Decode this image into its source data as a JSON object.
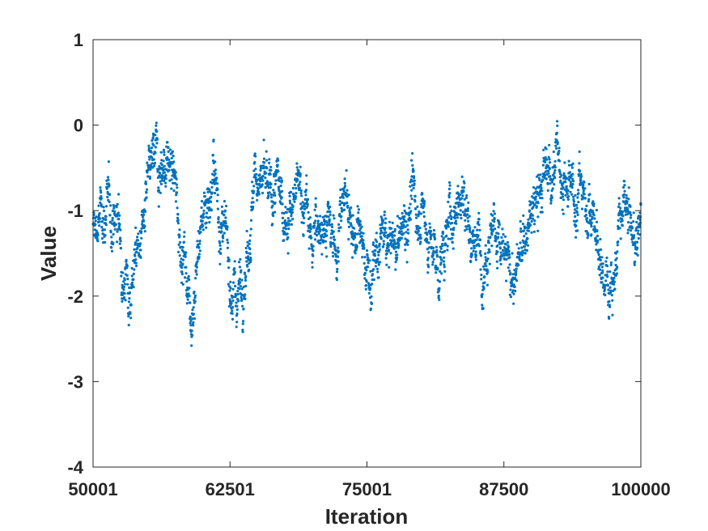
{
  "chart_data": {
    "type": "scatter",
    "xlabel": "Iteration",
    "ylabel": "Value",
    "xlim": [
      50001,
      100000
    ],
    "ylim": [
      -4,
      1
    ],
    "xticks": [
      50001,
      62501,
      75001,
      87500,
      100000
    ],
    "xtick_labels": [
      "50001",
      "62501",
      "75001",
      "87500",
      "100000"
    ],
    "yticks": [
      1,
      0,
      -1,
      -2,
      -3,
      -4
    ],
    "ytick_labels": [
      "1",
      "0",
      "-1",
      "-2",
      "-3",
      "-4"
    ],
    "grid": false,
    "marker_color": "#0072BD",
    "series": [
      {
        "values_anchor_x": [
          50001,
          51000,
          52200,
          53300,
          54500,
          55500,
          56300,
          57200,
          58000,
          59000,
          60000,
          61000,
          62000,
          63000,
          63700,
          65000,
          66000,
          67000,
          68000,
          69000,
          70000,
          71000,
          72000,
          73000,
          74500,
          75500,
          76500,
          77500,
          79000,
          80000,
          81500,
          82500,
          83500,
          84500,
          85500,
          86500,
          87500,
          88500,
          89500,
          90500,
          91500,
          92500,
          93500,
          94500,
          95500,
          96500,
          97500,
          98500,
          99500,
          100000
        ],
        "values_anchor_y": [
          -1.3,
          -1.0,
          -1.1,
          -1.9,
          -1.2,
          -0.5,
          -0.4,
          -0.5,
          -1.3,
          -2.1,
          -1.0,
          -0.6,
          -1.4,
          -2.0,
          -1.7,
          -0.5,
          -0.9,
          -0.8,
          -1.1,
          -0.7,
          -1.4,
          -1.0,
          -1.5,
          -0.8,
          -1.5,
          -1.8,
          -1.3,
          -1.5,
          -0.9,
          -1.0,
          -1.7,
          -1.2,
          -0.7,
          -1.2,
          -1.5,
          -1.1,
          -1.6,
          -1.8,
          -1.3,
          -0.9,
          -0.5,
          -0.4,
          -0.9,
          -0.7,
          -1.0,
          -1.8,
          -1.7,
          -1.0,
          -1.4,
          -1.0
        ]
      }
    ]
  }
}
